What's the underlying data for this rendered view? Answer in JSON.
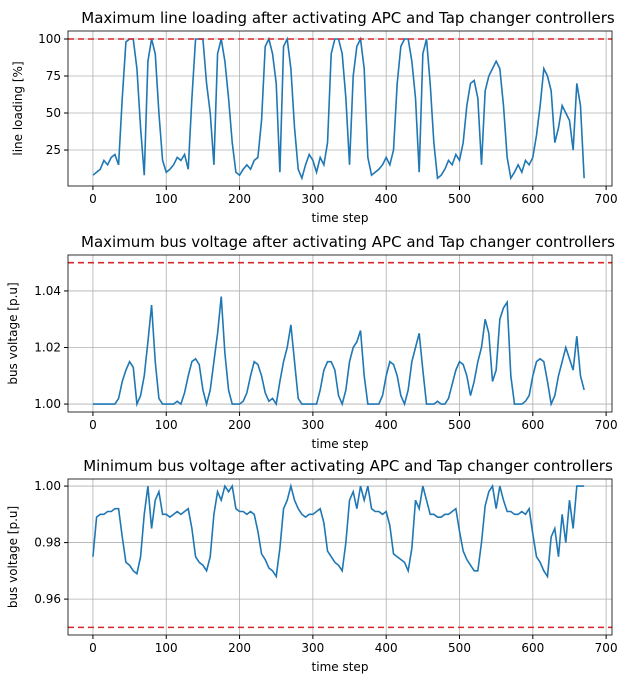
{
  "chart_data": [
    {
      "type": "line",
      "title": "Maximum line loading after activating APC and Tap changer controllers",
      "xlabel": "time step",
      "ylabel": "line loading [%]",
      "color": "#1f77b4",
      "grid": true,
      "xlim": [
        -34,
        708
      ],
      "xticks": [
        0,
        100,
        200,
        300,
        400,
        500,
        600,
        700
      ],
      "ylim": [
        0.7,
        105.4
      ],
      "yticks": [
        25,
        50,
        75,
        100
      ],
      "reference_lines": [
        {
          "value": 100,
          "color": "#d62728",
          "dashed": true
        }
      ],
      "x": [
        0,
        5,
        10,
        15,
        20,
        25,
        30,
        35,
        40,
        45,
        50,
        55,
        60,
        65,
        70,
        75,
        80,
        85,
        90,
        95,
        100,
        105,
        110,
        115,
        120,
        125,
        130,
        135,
        140,
        145,
        150,
        155,
        160,
        165,
        170,
        175,
        180,
        185,
        190,
        195,
        200,
        205,
        210,
        215,
        220,
        225,
        230,
        235,
        240,
        245,
        250,
        255,
        260,
        265,
        270,
        275,
        280,
        285,
        290,
        295,
        300,
        305,
        310,
        315,
        320,
        325,
        330,
        335,
        340,
        345,
        350,
        355,
        360,
        365,
        370,
        375,
        380,
        385,
        390,
        395,
        400,
        405,
        410,
        415,
        420,
        425,
        430,
        435,
        440,
        445,
        450,
        455,
        460,
        465,
        470,
        475,
        480,
        485,
        490,
        495,
        500,
        505,
        510,
        515,
        520,
        525,
        530,
        535,
        540,
        545,
        550,
        555,
        560,
        565,
        570,
        575,
        580,
        585,
        590,
        595,
        600,
        605,
        610,
        615,
        620,
        625,
        630,
        635,
        640,
        645,
        650,
        655,
        660,
        665,
        670
      ],
      "values": [
        8,
        10,
        12,
        18,
        15,
        20,
        22,
        15,
        60,
        98,
        100,
        100,
        80,
        40,
        8,
        85,
        100,
        90,
        50,
        18,
        10,
        12,
        15,
        20,
        18,
        22,
        12,
        60,
        100,
        100,
        100,
        70,
        50,
        15,
        90,
        100,
        85,
        60,
        30,
        10,
        8,
        12,
        15,
        12,
        18,
        20,
        45,
        95,
        100,
        90,
        70,
        10,
        95,
        100,
        80,
        40,
        12,
        6,
        15,
        22,
        18,
        10,
        20,
        15,
        30,
        90,
        100,
        100,
        90,
        60,
        15,
        75,
        95,
        100,
        80,
        20,
        8,
        10,
        12,
        15,
        20,
        15,
        25,
        70,
        95,
        100,
        100,
        85,
        60,
        10,
        90,
        100,
        70,
        30,
        6,
        8,
        12,
        18,
        15,
        22,
        18,
        30,
        55,
        70,
        72,
        60,
        15,
        65,
        75,
        80,
        85,
        80,
        55,
        20,
        6,
        10,
        15,
        10,
        18,
        15,
        20,
        35,
        55,
        80,
        75,
        65,
        30,
        40,
        55,
        50,
        45,
        25,
        70,
        55,
        6
      ]
    },
    {
      "type": "line",
      "title": "Maximum bus voltage after activating APC and Tap changer controllers",
      "xlabel": "time step",
      "ylabel": "bus voltage [p.u]",
      "color": "#1f77b4",
      "grid": true,
      "xlim": [
        -34,
        708
      ],
      "xticks": [
        0,
        100,
        200,
        300,
        400,
        500,
        600,
        700
      ],
      "ylim": [
        0.9972,
        1.0527
      ],
      "yticks": [
        {
          "value": 1.0,
          "label": "1.00"
        },
        1.02,
        1.04
      ],
      "reference_lines": [
        {
          "value": 1.05,
          "color": "#d62728",
          "dashed": true
        }
      ],
      "x": [
        0,
        5,
        10,
        15,
        20,
        25,
        30,
        35,
        40,
        45,
        50,
        55,
        60,
        65,
        70,
        75,
        80,
        85,
        90,
        95,
        100,
        105,
        110,
        115,
        120,
        125,
        130,
        135,
        140,
        145,
        150,
        155,
        160,
        165,
        170,
        175,
        180,
        185,
        190,
        195,
        200,
        205,
        210,
        215,
        220,
        225,
        230,
        235,
        240,
        245,
        250,
        255,
        260,
        265,
        270,
        275,
        280,
        285,
        290,
        295,
        300,
        305,
        310,
        315,
        320,
        325,
        330,
        335,
        340,
        345,
        350,
        355,
        360,
        365,
        370,
        375,
        380,
        385,
        390,
        395,
        400,
        405,
        410,
        415,
        420,
        425,
        430,
        435,
        440,
        445,
        450,
        455,
        460,
        465,
        470,
        475,
        480,
        485,
        490,
        495,
        500,
        505,
        510,
        515,
        520,
        525,
        530,
        535,
        540,
        545,
        550,
        555,
        560,
        565,
        570,
        575,
        580,
        585,
        590,
        595,
        600,
        605,
        610,
        615,
        620,
        625,
        630,
        635,
        640,
        645,
        650,
        655,
        660,
        665,
        670
      ],
      "values": [
        1.0,
        1.0,
        1.0,
        1.0,
        1.0,
        1.0,
        1.0,
        1.002,
        1.008,
        1.012,
        1.015,
        1.013,
        1.0,
        1.003,
        1.01,
        1.022,
        1.035,
        1.015,
        1.002,
        1.0,
        1.0,
        1.0,
        1.0,
        1.001,
        1.0,
        1.004,
        1.01,
        1.015,
        1.016,
        1.014,
        1.005,
        1.0,
        1.005,
        1.015,
        1.025,
        1.038,
        1.018,
        1.005,
        1.0,
        1.0,
        1.0,
        1.001,
        1.004,
        1.01,
        1.015,
        1.014,
        1.01,
        1.004,
        1.001,
        1.002,
        1.0,
        1.008,
        1.015,
        1.02,
        1.028,
        1.015,
        1.002,
        1.0,
        1.0,
        1.0,
        1.0,
        1.0,
        1.005,
        1.012,
        1.015,
        1.015,
        1.012,
        1.003,
        1.0,
        1.005,
        1.015,
        1.02,
        1.022,
        1.026,
        1.01,
        1.0,
        1.0,
        1.0,
        1.0,
        1.003,
        1.01,
        1.015,
        1.014,
        1.01,
        1.003,
        1.0,
        1.005,
        1.015,
        1.02,
        1.025,
        1.012,
        1.0,
        1.0,
        1.0,
        1.001,
        1.0,
        1.0,
        1.002,
        1.007,
        1.012,
        1.015,
        1.014,
        1.01,
        1.003,
        1.008,
        1.015,
        1.02,
        1.03,
        1.025,
        1.008,
        1.012,
        1.03,
        1.034,
        1.036,
        1.01,
        1.0,
        1.0,
        1.0,
        1.001,
        1.003,
        1.01,
        1.015,
        1.016,
        1.015,
        1.008,
        1.0,
        1.003,
        1.01,
        1.015,
        1.02,
        1.016,
        1.012,
        1.024,
        1.01,
        1.005
      ]
    },
    {
      "type": "line",
      "title": "Minimum bus voltage after activating APC and Tap changer controllers",
      "xlabel": "time step",
      "ylabel": "bus voltage [p.u]",
      "color": "#1f77b4",
      "grid": true,
      "xlim": [
        -34,
        708
      ],
      "xticks": [
        0,
        100,
        200,
        300,
        400,
        500,
        600,
        700
      ],
      "ylim": [
        0.9473,
        1.0025
      ],
      "yticks": [
        0.96,
        0.98,
        {
          "value": 1.0,
          "label": "1.00"
        }
      ],
      "reference_lines": [
        {
          "value": 0.95,
          "color": "#d62728",
          "dashed": true
        }
      ],
      "x": [
        0,
        5,
        10,
        15,
        20,
        25,
        30,
        35,
        40,
        45,
        50,
        55,
        60,
        65,
        70,
        75,
        80,
        85,
        90,
        95,
        100,
        105,
        110,
        115,
        120,
        125,
        130,
        135,
        140,
        145,
        150,
        155,
        160,
        165,
        170,
        175,
        180,
        185,
        190,
        195,
        200,
        205,
        210,
        215,
        220,
        225,
        230,
        235,
        240,
        245,
        250,
        255,
        260,
        265,
        270,
        275,
        280,
        285,
        290,
        295,
        300,
        305,
        310,
        315,
        320,
        325,
        330,
        335,
        340,
        345,
        350,
        355,
        360,
        365,
        370,
        375,
        380,
        385,
        390,
        395,
        400,
        405,
        410,
        415,
        420,
        425,
        430,
        435,
        440,
        445,
        450,
        455,
        460,
        465,
        470,
        475,
        480,
        485,
        490,
        495,
        500,
        505,
        510,
        515,
        520,
        525,
        530,
        535,
        540,
        545,
        550,
        555,
        560,
        565,
        570,
        575,
        580,
        585,
        590,
        595,
        600,
        605,
        610,
        615,
        620,
        625,
        630,
        635,
        640,
        645,
        650,
        655,
        660,
        665,
        670
      ],
      "values": [
        0.975,
        0.989,
        0.99,
        0.99,
        0.991,
        0.991,
        0.992,
        0.992,
        0.982,
        0.973,
        0.972,
        0.97,
        0.969,
        0.975,
        0.99,
        1.0,
        0.985,
        0.995,
        0.998,
        0.99,
        0.99,
        0.989,
        0.99,
        0.991,
        0.99,
        0.991,
        0.992,
        0.985,
        0.975,
        0.973,
        0.972,
        0.97,
        0.975,
        0.99,
        0.998,
        0.995,
        1.0,
        0.998,
        1.0,
        0.992,
        0.991,
        0.991,
        0.99,
        0.991,
        0.99,
        0.984,
        0.976,
        0.974,
        0.971,
        0.97,
        0.968,
        0.978,
        0.992,
        0.995,
        1.0,
        0.995,
        0.992,
        0.99,
        0.989,
        0.99,
        0.99,
        0.991,
        0.992,
        0.987,
        0.977,
        0.975,
        0.973,
        0.972,
        0.97,
        0.98,
        0.995,
        0.998,
        0.992,
        1.0,
        0.995,
        1.0,
        0.992,
        0.991,
        0.991,
        0.99,
        0.991,
        0.986,
        0.976,
        0.975,
        0.974,
        0.973,
        0.97,
        0.978,
        0.995,
        0.992,
        1.0,
        0.995,
        0.99,
        0.99,
        0.989,
        0.989,
        0.99,
        0.99,
        0.991,
        0.992,
        0.984,
        0.977,
        0.974,
        0.972,
        0.97,
        0.97,
        0.98,
        0.993,
        0.998,
        1.0,
        0.992,
        1.0,
        0.995,
        0.991,
        0.991,
        0.99,
        0.99,
        0.991,
        0.99,
        0.992,
        0.983,
        0.975,
        0.973,
        0.97,
        0.968,
        0.982,
        0.985,
        0.975,
        0.99,
        0.98,
        0.995,
        0.985,
        1.0,
        1.0,
        1.0
      ]
    }
  ]
}
